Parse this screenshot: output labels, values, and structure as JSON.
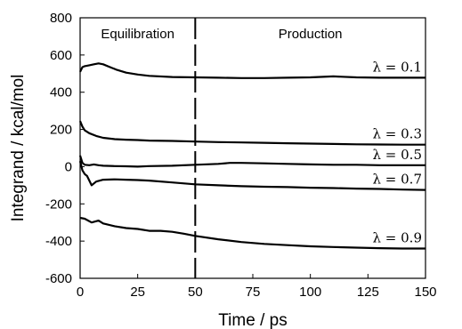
{
  "chart_data": {
    "type": "line",
    "xlabel": "Time / ps",
    "ylabel": "Integrand / kcal/mol",
    "xlim": [
      0,
      150
    ],
    "ylim": [
      -600,
      800
    ],
    "xticks": [
      0,
      25,
      50,
      75,
      100,
      125,
      150
    ],
    "yticks": [
      -600,
      -400,
      -200,
      0,
      200,
      400,
      600,
      800
    ],
    "grid": false,
    "legend": "none",
    "annotations": [
      {
        "text": "Equilibration"
      },
      {
        "text": "Production"
      }
    ],
    "divider_x": 50,
    "series": [
      {
        "name": "λ = 0.1",
        "x": [
          0,
          1,
          2,
          4,
          6,
          8,
          10,
          13,
          16,
          20,
          25,
          30,
          40,
          50,
          60,
          70,
          80,
          90,
          100,
          110,
          120,
          130,
          140,
          150
        ],
        "y": [
          510,
          535,
          540,
          545,
          550,
          555,
          550,
          535,
          520,
          505,
          495,
          488,
          482,
          480,
          478,
          476,
          476,
          478,
          480,
          485,
          480,
          478,
          478,
          478
        ]
      },
      {
        "name": "λ = 0.3",
        "x": [
          0,
          1,
          2,
          4,
          7,
          10,
          15,
          20,
          25,
          30,
          40,
          50,
          60,
          70,
          80,
          90,
          100,
          110,
          120,
          130,
          140,
          150
        ],
        "y": [
          245,
          215,
          195,
          180,
          165,
          155,
          148,
          145,
          143,
          140,
          138,
          135,
          132,
          130,
          128,
          126,
          124,
          122,
          120,
          119,
          118,
          118
        ]
      },
      {
        "name": "λ = 0.5",
        "x": [
          0,
          1,
          2,
          4,
          6,
          8,
          10,
          15,
          20,
          25,
          30,
          40,
          50,
          60,
          65,
          70,
          80,
          90,
          100,
          110,
          120,
          130,
          140,
          150
        ],
        "y": [
          60,
          20,
          10,
          8,
          12,
          8,
          5,
          3,
          2,
          0,
          3,
          5,
          10,
          15,
          20,
          20,
          18,
          15,
          12,
          10,
          10,
          8,
          8,
          8
        ]
      },
      {
        "name": "λ = 0.7",
        "x": [
          0,
          1,
          2,
          3,
          5,
          7,
          10,
          15,
          20,
          25,
          30,
          40,
          50,
          60,
          70,
          80,
          90,
          100,
          110,
          120,
          130,
          140,
          150
        ],
        "y": [
          30,
          -20,
          -40,
          -50,
          -100,
          -80,
          -70,
          -68,
          -70,
          -72,
          -75,
          -85,
          -95,
          -100,
          -105,
          -108,
          -110,
          -113,
          -115,
          -118,
          -120,
          -123,
          -125
        ]
      },
      {
        "name": "λ = 0.9",
        "x": [
          0,
          2,
          5,
          8,
          10,
          15,
          20,
          25,
          30,
          35,
          40,
          45,
          50,
          60,
          70,
          80,
          90,
          100,
          110,
          120,
          130,
          140,
          150
        ],
        "y": [
          -275,
          -280,
          -300,
          -290,
          -305,
          -320,
          -330,
          -335,
          -345,
          -345,
          -350,
          -360,
          -372,
          -390,
          -405,
          -415,
          -422,
          -428,
          -432,
          -435,
          -438,
          -440,
          -440
        ]
      }
    ]
  }
}
